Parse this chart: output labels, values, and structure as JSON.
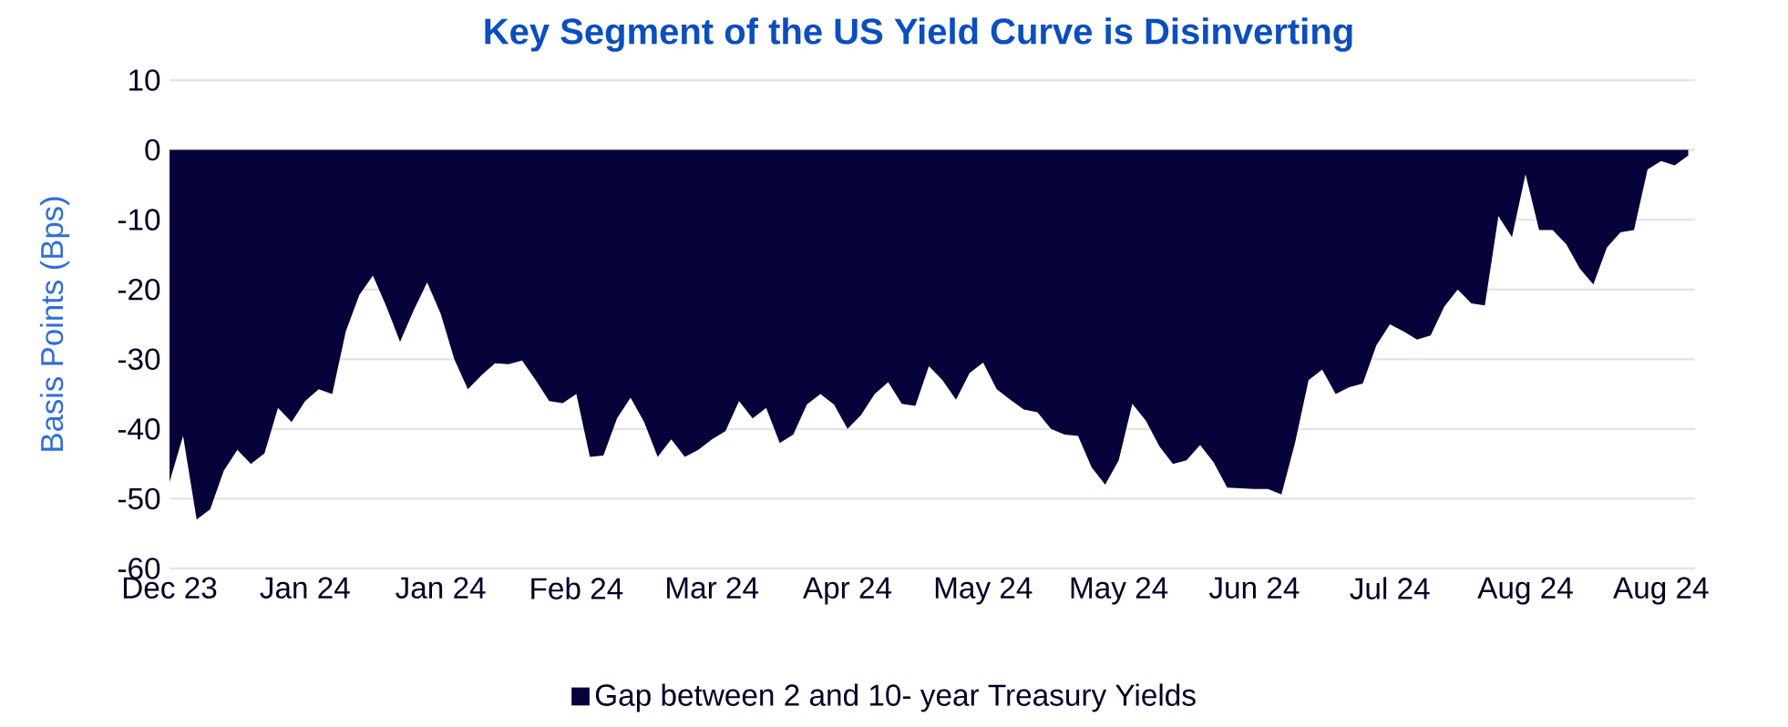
{
  "chart_data": {
    "type": "area",
    "title": "Key Segment of the US Yield Curve is Disinverting",
    "ylabel": "Basis Points (Bps)",
    "categories": [
      "Dec 23",
      null,
      null,
      null,
      null,
      null,
      null,
      null,
      null,
      null,
      "Jan 24",
      null,
      null,
      null,
      null,
      null,
      null,
      null,
      null,
      null,
      "Jan 24",
      null,
      null,
      null,
      null,
      null,
      null,
      null,
      null,
      null,
      "Feb 24",
      null,
      null,
      null,
      null,
      null,
      null,
      null,
      null,
      null,
      "Mar 24",
      null,
      null,
      null,
      null,
      null,
      null,
      null,
      null,
      null,
      "Apr 24",
      null,
      null,
      null,
      null,
      null,
      null,
      null,
      null,
      null,
      "May 24",
      null,
      null,
      null,
      null,
      null,
      null,
      null,
      null,
      null,
      "May 24",
      null,
      null,
      null,
      null,
      null,
      null,
      null,
      null,
      null,
      "Jun 24",
      null,
      null,
      null,
      null,
      null,
      null,
      null,
      null,
      null,
      "Jul 24",
      null,
      null,
      null,
      null,
      null,
      null,
      null,
      null,
      null,
      "Aug 24",
      null,
      null,
      null,
      null,
      null,
      null,
      null,
      null,
      null,
      "Aug 24",
      null,
      null
    ],
    "series": [
      {
        "name": "Gap between 2 and 10- year Treasury Yields",
        "color": "#06033a",
        "values": [
          -47.6,
          -41,
          -53,
          -51.5,
          -46,
          -43,
          -45,
          -43.5,
          -37,
          -39,
          -36,
          -34.3,
          -35,
          -26,
          -20.8,
          -18,
          -22.5,
          -27.5,
          -23,
          -19,
          -23.5,
          -30,
          -34.3,
          -32.3,
          -30.6,
          -30.7,
          -30.2,
          -33,
          -36,
          -36.3,
          -35,
          -44,
          -43.8,
          -38.5,
          -35.5,
          -39,
          -44,
          -41.5,
          -44,
          -43,
          -41.5,
          -40.3,
          -36,
          -38.5,
          -37,
          -42,
          -40.8,
          -36.5,
          -35,
          -36.5,
          -40,
          -38,
          -35,
          -33.3,
          -36.4,
          -36.7,
          -31,
          -33,
          -35.8,
          -32,
          -30.5,
          -34.3,
          -35.8,
          -37.2,
          -37.6,
          -40,
          -40.8,
          -41,
          -45.5,
          -48,
          -44.5,
          -36.4,
          -38.8,
          -42.5,
          -45,
          -44.5,
          -42.3,
          -44.8,
          -48.4,
          -48.5,
          -48.6,
          -48.6,
          -49.4,
          -42,
          -33,
          -31.5,
          -35,
          -34,
          -33.5,
          -28,
          -25,
          -26,
          -27.2,
          -26.6,
          -22.5,
          -20,
          -22,
          -22.3,
          -9.5,
          -12.5,
          -3.5,
          -11.5,
          -11.5,
          -13.5,
          -17,
          -19.3,
          -14,
          -11.8,
          -11.5,
          -2.8,
          -1.6,
          -2.2,
          -0.8
        ]
      }
    ],
    "ylim": [
      -60,
      10
    ],
    "yticks": [
      -60,
      -50,
      -40,
      -30,
      -20,
      -10,
      0,
      10
    ],
    "grid": "y",
    "legend": "bottom"
  }
}
